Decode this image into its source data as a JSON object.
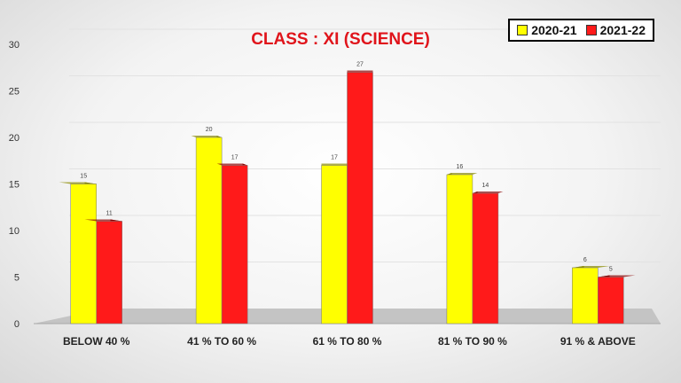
{
  "chart_data": {
    "type": "bar",
    "title": "CLASS : XI (SCIENCE)",
    "categories": [
      "BELOW 40 %",
      "41 % TO 60 %",
      "61 % TO 80 %",
      "81 % TO 90 %",
      "91 % & ABOVE"
    ],
    "series": [
      {
        "name": "2020-21",
        "values": [
          15,
          20,
          17,
          16,
          6
        ],
        "color": "#ffff00",
        "side_color": "#8a8a00"
      },
      {
        "name": "2021-22",
        "values": [
          11,
          17,
          27,
          14,
          5
        ],
        "color": "#ff1a1a",
        "side_color": "#8a0000"
      }
    ],
    "ylim": [
      0,
      30
    ],
    "yticks": [
      0,
      5,
      10,
      15,
      20,
      25,
      30
    ],
    "xlabel": "",
    "ylabel": "",
    "grid": true,
    "legend_position": "top-right",
    "data_labels": true
  }
}
